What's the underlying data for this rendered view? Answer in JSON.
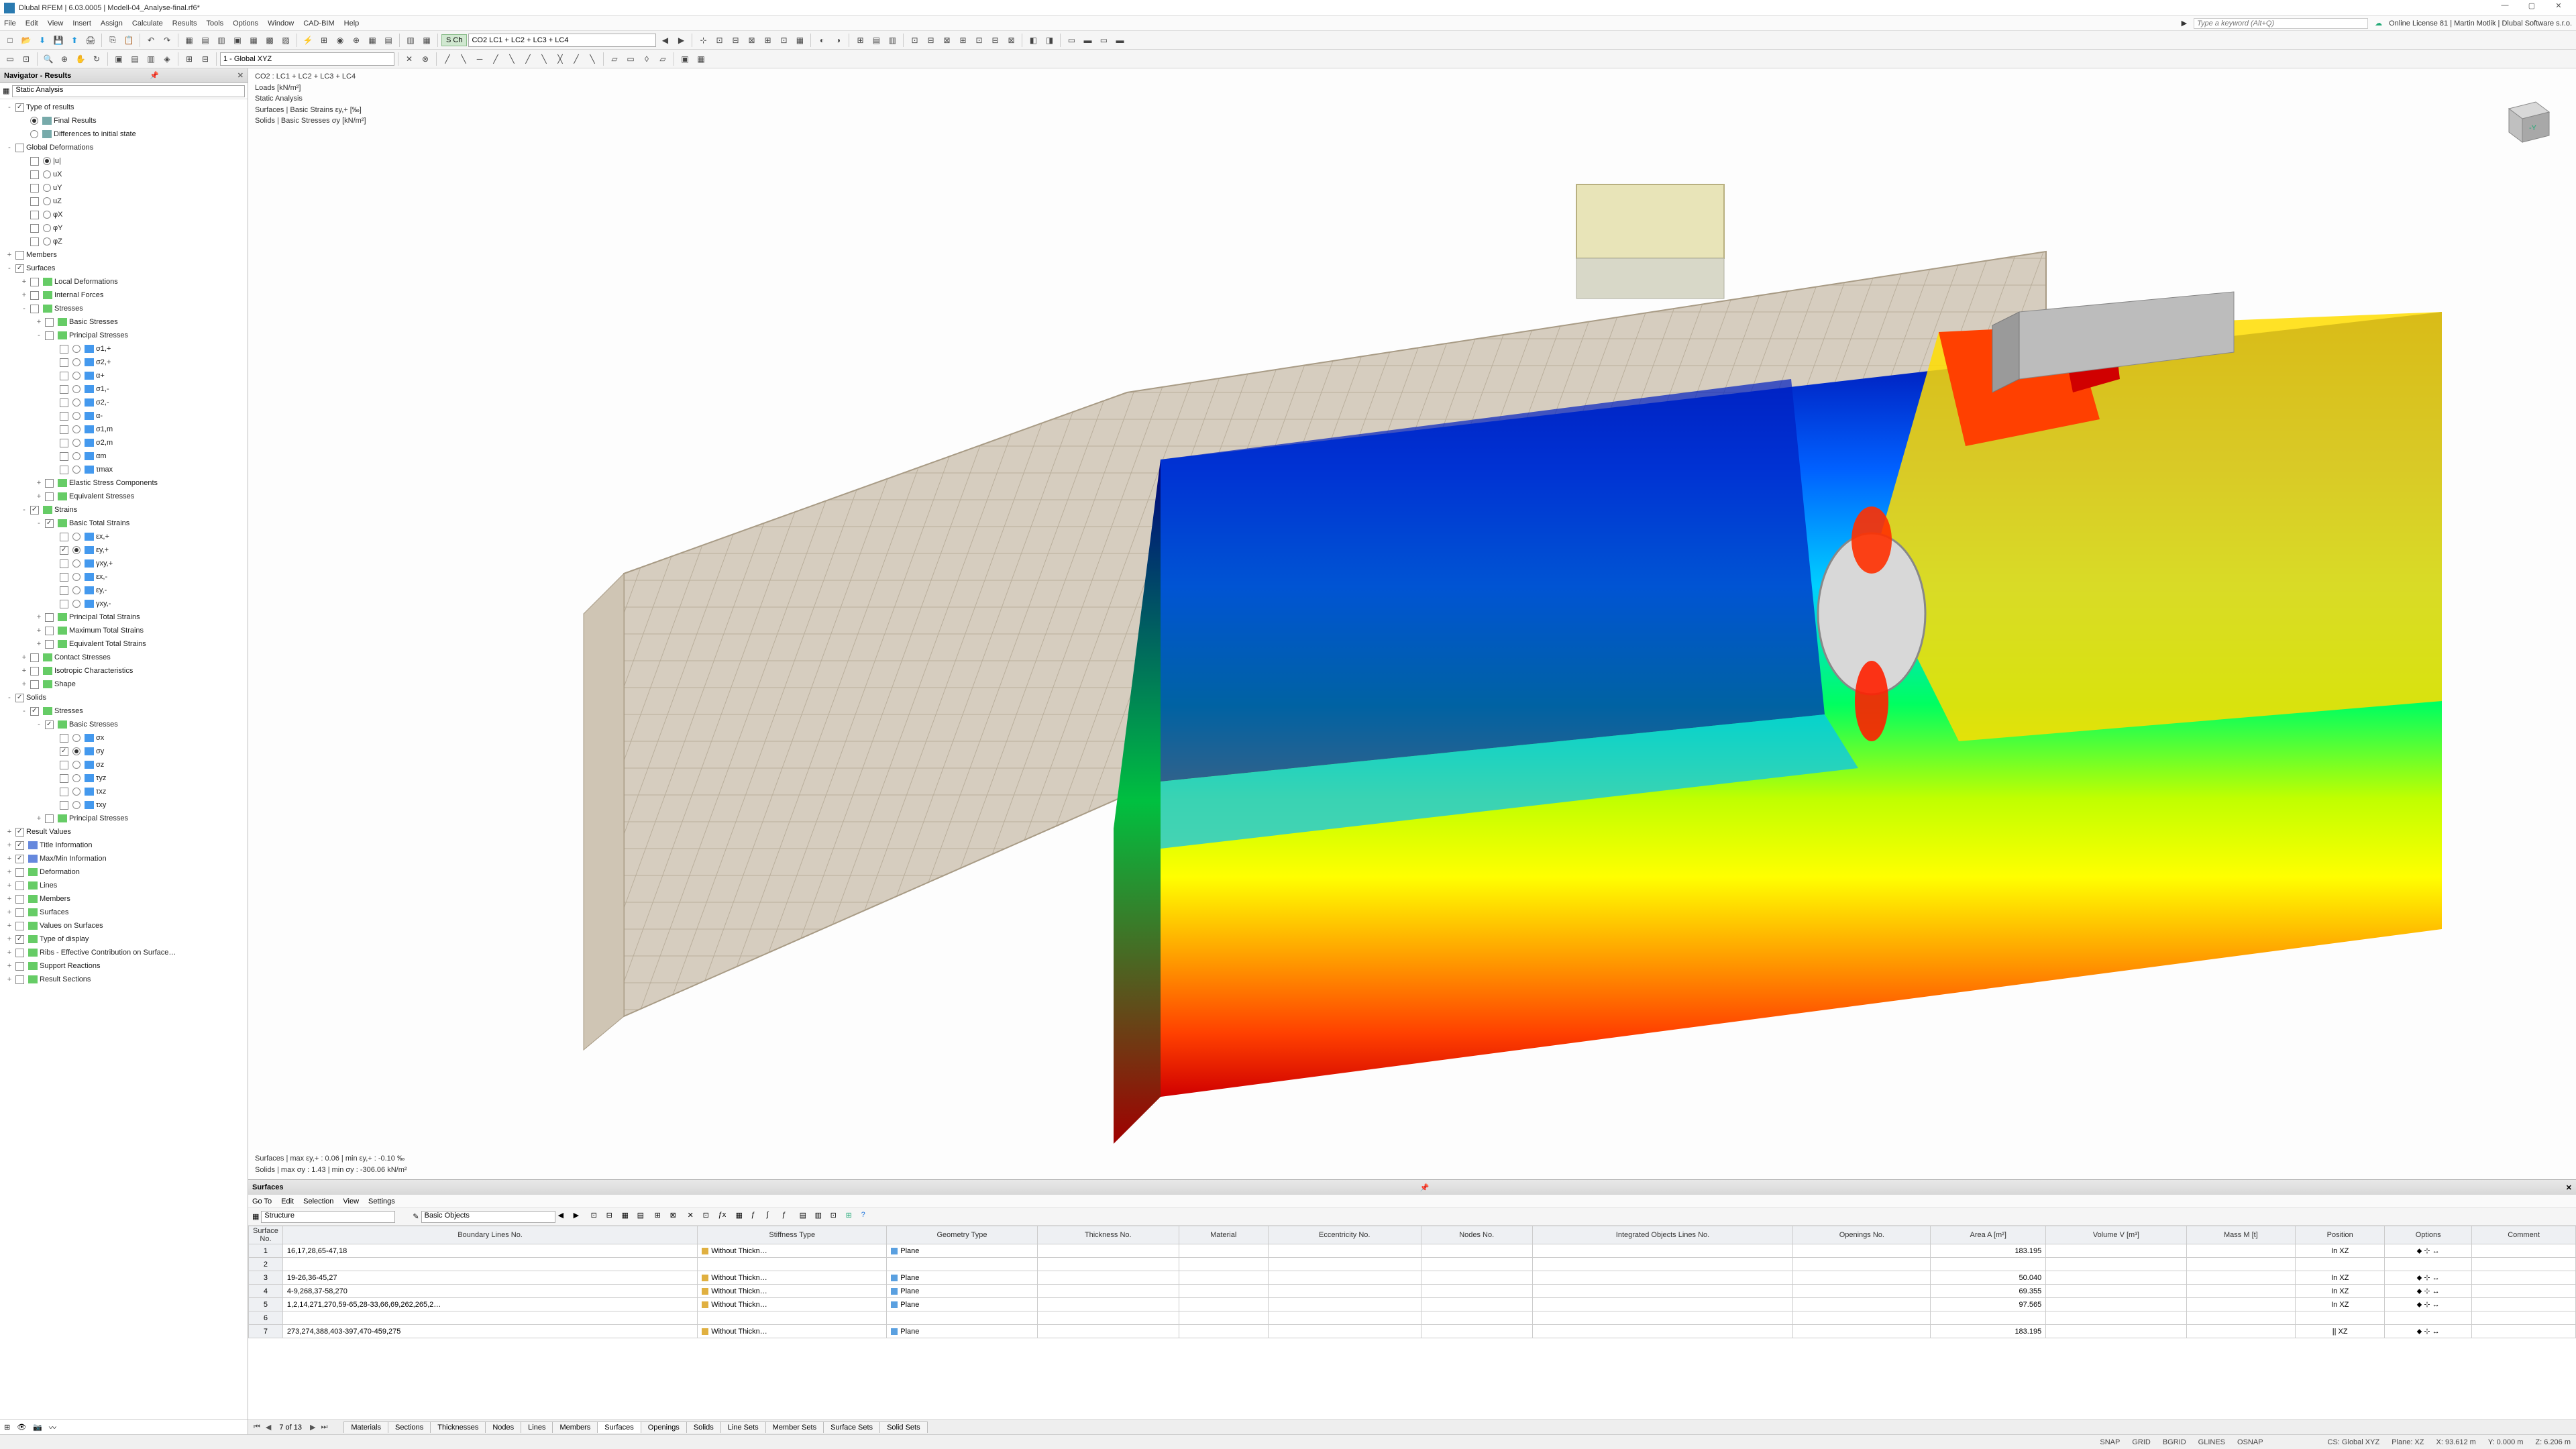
{
  "app": {
    "title": "Dlubal RFEM | 6.03.0005 | Modell-04_Analyse-final.rf6*",
    "search_placeholder": "Type a keyword (Alt+Q)",
    "license": "Online License 81 | Martin Motlik | Dlubal Software s.r.o."
  },
  "menus": [
    "File",
    "Edit",
    "View",
    "Insert",
    "Assign",
    "Calculate",
    "Results",
    "Tools",
    "Options",
    "Window",
    "CAD-BIM",
    "Help"
  ],
  "load_combo": "CO2   LC1 + LC2 + LC3 + LC4",
  "view_combo": "1 - Global XYZ",
  "navigator": {
    "title": "Navigator - Results",
    "mode": "Static Analysis",
    "tree": [
      {
        "d": 0,
        "exp": "-",
        "chk": 1,
        "lbl": "Type of results"
      },
      {
        "d": 1,
        "rad": 1,
        "ico": "#7aa",
        "lbl": "Final Results"
      },
      {
        "d": 1,
        "rad": 0,
        "ico": "#7aa",
        "lbl": "Differences to initial state"
      },
      {
        "d": 0,
        "exp": "-",
        "chk": 0,
        "lbl": "Global Deformations"
      },
      {
        "d": 1,
        "rad": 1,
        "chk": 0,
        "lbl": "|u|"
      },
      {
        "d": 1,
        "rad": 0,
        "chk": 0,
        "lbl": "uX"
      },
      {
        "d": 1,
        "rad": 0,
        "chk": 0,
        "lbl": "uY"
      },
      {
        "d": 1,
        "rad": 0,
        "chk": 0,
        "lbl": "uZ"
      },
      {
        "d": 1,
        "rad": 0,
        "chk": 0,
        "lbl": "φX"
      },
      {
        "d": 1,
        "rad": 0,
        "chk": 0,
        "lbl": "φY"
      },
      {
        "d": 1,
        "rad": 0,
        "chk": 0,
        "lbl": "φZ"
      },
      {
        "d": 0,
        "exp": "+",
        "chk": 0,
        "lbl": "Members"
      },
      {
        "d": 0,
        "exp": "-",
        "chk": 1,
        "lbl": "Surfaces"
      },
      {
        "d": 1,
        "exp": "+",
        "chk": 0,
        "ico": "#6c6",
        "lbl": "Local Deformations"
      },
      {
        "d": 1,
        "exp": "+",
        "chk": 0,
        "ico": "#6c6",
        "lbl": "Internal Forces"
      },
      {
        "d": 1,
        "exp": "-",
        "chk": 0,
        "ico": "#6c6",
        "lbl": "Stresses"
      },
      {
        "d": 2,
        "exp": "+",
        "chk": 0,
        "ico": "#6c6",
        "lbl": "Basic Stresses"
      },
      {
        "d": 2,
        "exp": "-",
        "chk": 0,
        "ico": "#6c6",
        "lbl": "Principal Stresses"
      },
      {
        "d": 3,
        "rad": 0,
        "chk": 0,
        "ico": "#49e",
        "lbl": "σ1,+"
      },
      {
        "d": 3,
        "rad": 0,
        "chk": 0,
        "ico": "#49e",
        "lbl": "σ2,+"
      },
      {
        "d": 3,
        "rad": 0,
        "chk": 0,
        "ico": "#49e",
        "lbl": "α+"
      },
      {
        "d": 3,
        "rad": 0,
        "chk": 0,
        "ico": "#49e",
        "lbl": "σ1,-"
      },
      {
        "d": 3,
        "rad": 0,
        "chk": 0,
        "ico": "#49e",
        "lbl": "σ2,-"
      },
      {
        "d": 3,
        "rad": 0,
        "chk": 0,
        "ico": "#49e",
        "lbl": "α-"
      },
      {
        "d": 3,
        "rad": 0,
        "chk": 0,
        "ico": "#49e",
        "lbl": "σ1,m"
      },
      {
        "d": 3,
        "rad": 0,
        "chk": 0,
        "ico": "#49e",
        "lbl": "σ2,m"
      },
      {
        "d": 3,
        "rad": 0,
        "chk": 0,
        "ico": "#49e",
        "lbl": "αm"
      },
      {
        "d": 3,
        "rad": 0,
        "chk": 0,
        "ico": "#49e",
        "lbl": "τmax"
      },
      {
        "d": 2,
        "exp": "+",
        "chk": 0,
        "ico": "#6c6",
        "lbl": "Elastic Stress Components"
      },
      {
        "d": 2,
        "exp": "+",
        "chk": 0,
        "ico": "#6c6",
        "lbl": "Equivalent Stresses"
      },
      {
        "d": 1,
        "exp": "-",
        "chk": 1,
        "ico": "#6c6",
        "lbl": "Strains"
      },
      {
        "d": 2,
        "exp": "-",
        "chk": 1,
        "ico": "#6c6",
        "lbl": "Basic Total Strains"
      },
      {
        "d": 3,
        "rad": 0,
        "chk": 0,
        "ico": "#49e",
        "lbl": "εx,+"
      },
      {
        "d": 3,
        "rad": 1,
        "chk": 1,
        "ico": "#49e",
        "lbl": "εy,+"
      },
      {
        "d": 3,
        "rad": 0,
        "chk": 0,
        "ico": "#49e",
        "lbl": "γxy,+"
      },
      {
        "d": 3,
        "rad": 0,
        "chk": 0,
        "ico": "#49e",
        "lbl": "εx,-"
      },
      {
        "d": 3,
        "rad": 0,
        "chk": 0,
        "ico": "#49e",
        "lbl": "εy,-"
      },
      {
        "d": 3,
        "rad": 0,
        "chk": 0,
        "ico": "#49e",
        "lbl": "γxy,-"
      },
      {
        "d": 2,
        "exp": "+",
        "chk": 0,
        "ico": "#6c6",
        "lbl": "Principal Total Strains"
      },
      {
        "d": 2,
        "exp": "+",
        "chk": 0,
        "ico": "#6c6",
        "lbl": "Maximum Total Strains"
      },
      {
        "d": 2,
        "exp": "+",
        "chk": 0,
        "ico": "#6c6",
        "lbl": "Equivalent Total Strains"
      },
      {
        "d": 1,
        "exp": "+",
        "chk": 0,
        "ico": "#6c6",
        "lbl": "Contact Stresses"
      },
      {
        "d": 1,
        "exp": "+",
        "chk": 0,
        "ico": "#6c6",
        "lbl": "Isotropic Characteristics"
      },
      {
        "d": 1,
        "exp": "+",
        "chk": 0,
        "ico": "#6c6",
        "lbl": "Shape"
      },
      {
        "d": 0,
        "exp": "-",
        "chk": 1,
        "lbl": "Solids"
      },
      {
        "d": 1,
        "exp": "-",
        "chk": 1,
        "ico": "#6c6",
        "lbl": "Stresses"
      },
      {
        "d": 2,
        "exp": "-",
        "chk": 1,
        "ico": "#6c6",
        "lbl": "Basic Stresses"
      },
      {
        "d": 3,
        "rad": 0,
        "chk": 0,
        "ico": "#49e",
        "lbl": "σx"
      },
      {
        "d": 3,
        "rad": 1,
        "chk": 1,
        "ico": "#49e",
        "lbl": "σy"
      },
      {
        "d": 3,
        "rad": 0,
        "chk": 0,
        "ico": "#49e",
        "lbl": "σz"
      },
      {
        "d": 3,
        "rad": 0,
        "chk": 0,
        "ico": "#49e",
        "lbl": "τyz"
      },
      {
        "d": 3,
        "rad": 0,
        "chk": 0,
        "ico": "#49e",
        "lbl": "τxz"
      },
      {
        "d": 3,
        "rad": 0,
        "chk": 0,
        "ico": "#49e",
        "lbl": "τxy"
      },
      {
        "d": 2,
        "exp": "+",
        "chk": 0,
        "ico": "#6c6",
        "lbl": "Principal Stresses"
      },
      {
        "d": 0,
        "exp": "+",
        "chk": 1,
        "lbl": "Result Values"
      },
      {
        "d": 0,
        "exp": "+",
        "chk": 1,
        "ico": "#68d",
        "lbl": "Title Information"
      },
      {
        "d": 0,
        "exp": "+",
        "chk": 1,
        "ico": "#68d",
        "lbl": "Max/Min Information"
      },
      {
        "d": 0,
        "exp": "+",
        "chk": 0,
        "ico": "#6c6",
        "lbl": "Deformation"
      },
      {
        "d": 0,
        "exp": "+",
        "chk": 0,
        "ico": "#6c6",
        "lbl": "Lines"
      },
      {
        "d": 0,
        "exp": "+",
        "chk": 0,
        "ico": "#6c6",
        "lbl": "Members"
      },
      {
        "d": 0,
        "exp": "+",
        "chk": 0,
        "ico": "#6c6",
        "lbl": "Surfaces"
      },
      {
        "d": 0,
        "exp": "+",
        "chk": 0,
        "ico": "#6c6",
        "lbl": "Values on Surfaces"
      },
      {
        "d": 0,
        "exp": "+",
        "chk": 1,
        "ico": "#6c6",
        "lbl": "Type of display"
      },
      {
        "d": 0,
        "exp": "+",
        "chk": 0,
        "ico": "#6c6",
        "lbl": "Ribs - Effective Contribution on Surface…"
      },
      {
        "d": 0,
        "exp": "+",
        "chk": 0,
        "ico": "#6c6",
        "lbl": "Support Reactions"
      },
      {
        "d": 0,
        "exp": "+",
        "chk": 0,
        "ico": "#6c6",
        "lbl": "Result Sections"
      }
    ]
  },
  "canvas": {
    "info_lines": [
      "CO2 :  LC1 + LC2 + LC3 + LC4",
      "Loads [kN/m²]",
      "Static Analysis",
      "Surfaces | Basic Strains εy,+ [‰]",
      "Solids | Basic Stresses σy [kN/m²]"
    ],
    "footer_lines": [
      "Surfaces | max εy,+ : 0.06 | min εy,+ : -0.10 ‰",
      "Solids | max σy : 1.43 | min σy : -306.06 kN/m²"
    ],
    "mesh_color": "#d6cdbf",
    "mesh_line": "#b8ad9a",
    "colormap": [
      "#0000a0",
      "#0040ff",
      "#00a0ff",
      "#00e0e0",
      "#00ff80",
      "#80ff00",
      "#ffff00",
      "#ffc000",
      "#ff6000",
      "#ff0000",
      "#c00000"
    ]
  },
  "surfaces_panel": {
    "title": "Surfaces",
    "menu": [
      "Go To",
      "Edit",
      "Selection",
      "View",
      "Settings"
    ],
    "structure_combo": "Structure",
    "objects_combo": "Basic Objects",
    "columns": [
      "Surface No.",
      "Boundary Lines No.",
      "Stiffness Type",
      "Geometry Type",
      "Thickness No.",
      "Material",
      "Eccentricity No.",
      "Nodes No.",
      "Integrated Objects Lines No.",
      "Openings No.",
      "Area A [m²]",
      "Volume V [m³]",
      "Mass M [t]",
      "Position",
      "Options",
      "Comment"
    ],
    "rows": [
      {
        "n": "1",
        "bl": "16,17,28,65-47,18",
        "st": "Without Thickn…",
        "stc": "#e0b040",
        "gt": "Plane",
        "gtc": "#5aa0e0",
        "a": "183.195",
        "pos": "In XZ"
      },
      {
        "n": "2",
        "bl": "",
        "st": "",
        "gt": "",
        "a": "",
        "pos": ""
      },
      {
        "n": "3",
        "bl": "19-26,36-45,27",
        "st": "Without Thickn…",
        "stc": "#e0b040",
        "gt": "Plane",
        "gtc": "#5aa0e0",
        "a": "50.040",
        "pos": "In XZ"
      },
      {
        "n": "4",
        "bl": "4-9,268,37-58,270",
        "st": "Without Thickn…",
        "stc": "#e0b040",
        "gt": "Plane",
        "gtc": "#5aa0e0",
        "a": "69.355",
        "pos": "In XZ"
      },
      {
        "n": "5",
        "bl": "1,2,14,271,270,59-65,28-33,66,69,262,265,2…",
        "st": "Without Thickn…",
        "stc": "#e0b040",
        "gt": "Plane",
        "gtc": "#5aa0e0",
        "a": "97.565",
        "pos": "In XZ"
      },
      {
        "n": "6",
        "bl": "",
        "st": "",
        "gt": "",
        "a": "",
        "pos": ""
      },
      {
        "n": "7",
        "bl": "273,274,388,403-397,470-459,275",
        "st": "Without Thickn…",
        "stc": "#e0b040",
        "gt": "Plane",
        "gtc": "#5aa0e0",
        "a": "183.195",
        "pos": "|| XZ"
      }
    ],
    "page": "7 of 13",
    "tabs": [
      "Materials",
      "Sections",
      "Thicknesses",
      "Nodes",
      "Lines",
      "Members",
      "Surfaces",
      "Openings",
      "Solids",
      "Line Sets",
      "Member Sets",
      "Surface Sets",
      "Solid Sets"
    ],
    "active_tab": "Surfaces"
  },
  "status": {
    "snap": "SNAP",
    "grid": "GRID",
    "bgrid": "BGRID",
    "glines": "GLINES",
    "osnap": "OSNAP",
    "cs": "CS: Global XYZ",
    "plane": "Plane: XZ",
    "x": "X: 93.612 m",
    "y": "Y: 0.000 m",
    "z": "Z: 6.206 m"
  }
}
